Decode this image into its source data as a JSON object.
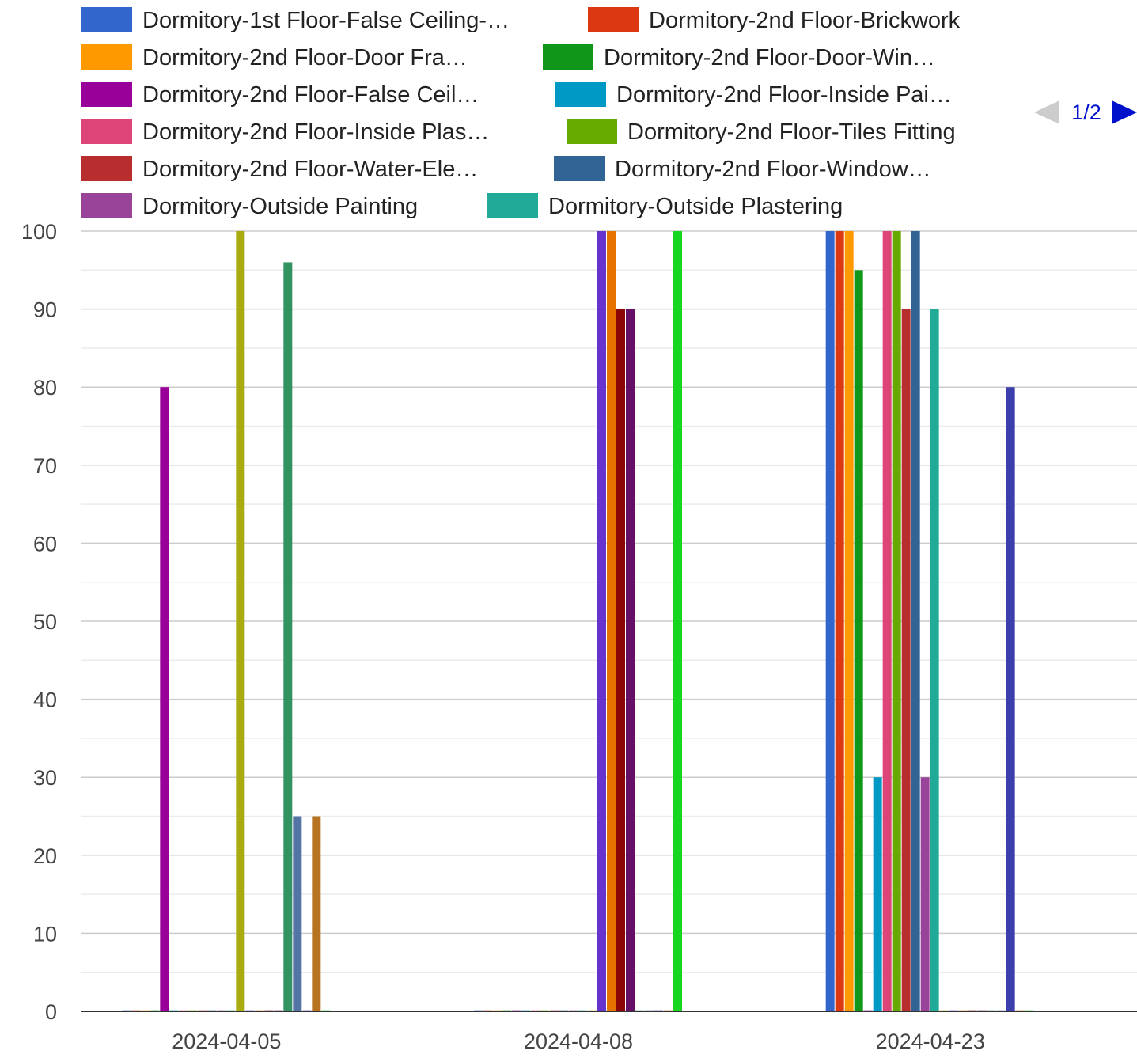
{
  "chart_data": {
    "type": "bar",
    "categories": [
      "2024-04-05",
      "2024-04-08",
      "2024-04-23"
    ],
    "ylim": [
      0,
      100
    ],
    "yticks": [
      0,
      10,
      20,
      30,
      40,
      50,
      60,
      70,
      80,
      90,
      100
    ],
    "grid": true,
    "legend_position": "top",
    "legend_pager": {
      "text": "1/2",
      "prev_enabled": false,
      "next_enabled": true
    },
    "series": [
      {
        "name": "Dormitory-1st Floor-False Ceiling-…",
        "color": "#3366cc",
        "values": [
          0,
          0,
          100
        ]
      },
      {
        "name": "Dormitory-2nd Floor-Brickwork",
        "color": "#dc3912",
        "values": [
          0,
          0,
          100
        ]
      },
      {
        "name": "Dormitory-2nd Floor-Door Fra…",
        "color": "#ff9900",
        "values": [
          0,
          0,
          100
        ]
      },
      {
        "name": "Dormitory-2nd Floor-Door-Win…",
        "color": "#109618",
        "values": [
          0,
          0,
          95
        ]
      },
      {
        "name": "Dormitory-2nd Floor-False Ceil…",
        "color": "#990099",
        "values": [
          80,
          0,
          0
        ]
      },
      {
        "name": "Dormitory-2nd Floor-Inside Pai…",
        "color": "#0099c6",
        "values": [
          0,
          0,
          30
        ]
      },
      {
        "name": "Dormitory-2nd Floor-Inside Plas…",
        "color": "#dd4477",
        "values": [
          0,
          0,
          100
        ]
      },
      {
        "name": "Dormitory-2nd Floor-Tiles Fitting",
        "color": "#66aa00",
        "values": [
          0,
          0,
          100
        ]
      },
      {
        "name": "Dormitory-2nd Floor-Water-Ele…",
        "color": "#b82e2e",
        "values": [
          0,
          0,
          90
        ]
      },
      {
        "name": "Dormitory-2nd Floor-Window…",
        "color": "#316395",
        "values": [
          0,
          0,
          100
        ]
      },
      {
        "name": "Dormitory-Outside Painting",
        "color": "#994499",
        "values": [
          0,
          0,
          30
        ]
      },
      {
        "name": "Dormitory-Outside Plastering",
        "color": "#22aa99",
        "values": [
          0,
          0,
          90
        ]
      },
      {
        "color": "#aaaa11",
        "values": [
          100,
          0,
          0
        ]
      },
      {
        "color": "#6633cc",
        "values": [
          0,
          100,
          0
        ]
      },
      {
        "color": "#e67300",
        "values": [
          0,
          100,
          0
        ]
      },
      {
        "color": "#8b0707",
        "values": [
          0,
          90,
          0
        ]
      },
      {
        "color": "#651067",
        "values": [
          0,
          90,
          0
        ]
      },
      {
        "color": "#329262",
        "values": [
          96,
          0,
          0
        ]
      },
      {
        "color": "#5574a6",
        "values": [
          25,
          0,
          0
        ]
      },
      {
        "color": "#3b3eac",
        "values": [
          0,
          0,
          80
        ]
      },
      {
        "color": "#b77322",
        "values": [
          25,
          0,
          0
        ]
      },
      {
        "color": "#16d620",
        "values": [
          0,
          100,
          0
        ]
      }
    ]
  }
}
